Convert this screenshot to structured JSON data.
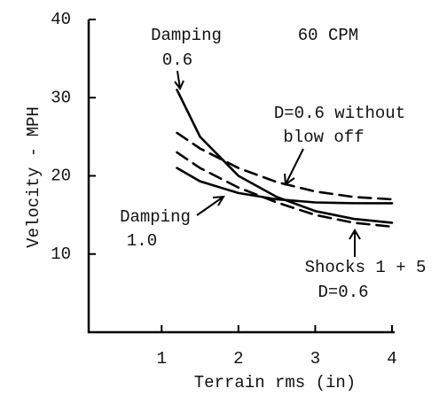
{
  "chart_data": {
    "type": "line",
    "x_label": "Terrain rms (in)",
    "y_label": "Velocity - MPH",
    "annotations": [
      "Damping",
      "0.6",
      "60 CPM",
      "D=0.6 without",
      "blow off",
      "Damping",
      "1.0",
      "Shocks 1 + 5",
      "D=0.6"
    ],
    "x": [
      1.2,
      1.5,
      2,
      2.5,
      3,
      3.5,
      4
    ],
    "series": [
      {
        "color": "#000000",
        "dashed": false,
        "values": [
          31,
          25,
          20,
          17.3,
          15.5,
          14.5,
          14
        ]
      },
      {
        "color": "#000000",
        "dashed": false,
        "values": [
          21,
          19.3,
          17.8,
          17,
          16.6,
          16.5,
          16.5
        ]
      },
      {
        "color": "#000000",
        "dashed": true,
        "values": [
          25.5,
          23.5,
          21,
          19.2,
          18,
          17.3,
          17
        ]
      },
      {
        "color": "#000000",
        "dashed": true,
        "values": [
          23,
          21,
          18.5,
          16.6,
          15,
          14,
          13.5
        ]
      }
    ],
    "xlim": [
      0.05,
      4
    ],
    "xticks": [
      1,
      2,
      3,
      4
    ],
    "ylim": [
      0,
      40
    ],
    "yticks": [
      10,
      20,
      30,
      40
    ],
    "grid": false
  }
}
